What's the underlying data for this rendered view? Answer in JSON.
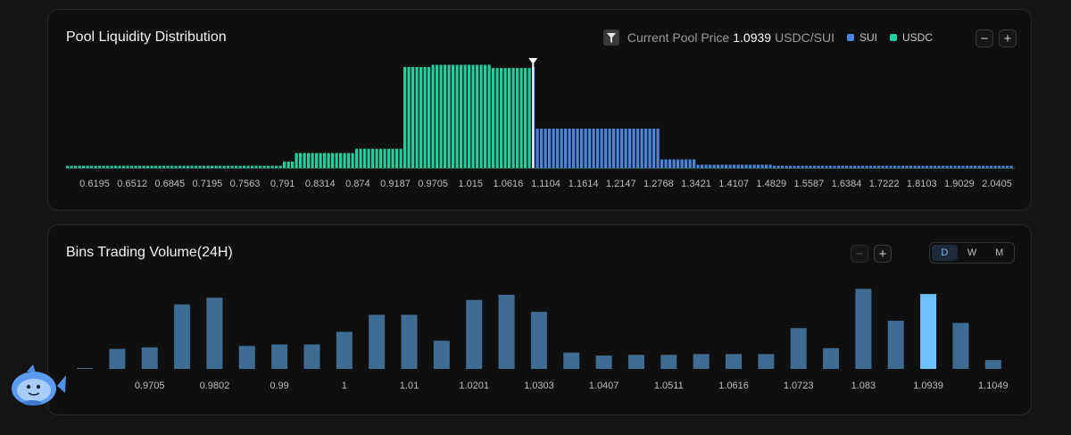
{
  "liquidity": {
    "title": "Pool Liquidity Distribution",
    "current_price_label": "Current Pool Price",
    "current_price_value": "1.0939",
    "current_price_unit": "USDC/SUI",
    "legend": [
      {
        "name": "SUI",
        "color": "#4a86df"
      },
      {
        "name": "USDC",
        "color": "#1ed1a0"
      }
    ],
    "zoom_out": "−",
    "zoom_in": "+"
  },
  "volume": {
    "title": "Bins Trading Volume(24H)",
    "zoom_out": "−",
    "zoom_in": "+",
    "periods": [
      "D",
      "W",
      "M"
    ],
    "active_period": "D"
  },
  "chart_data": [
    {
      "type": "bar",
      "title": "Pool Liquidity Distribution",
      "x_tick_labels": [
        "0.6195",
        "0.6512",
        "0.6845",
        "0.7195",
        "0.7563",
        "0.791",
        "0.8314",
        "0.874",
        "0.9187",
        "0.9705",
        "1.015",
        "1.0616",
        "1.1104",
        "1.1614",
        "1.2147",
        "1.2768",
        "1.3421",
        "1.4107",
        "1.4829",
        "1.5587",
        "1.6384",
        "1.7222",
        "1.8103",
        "1.9029",
        "2.0405"
      ],
      "x_range": [
        0.6,
        2.07
      ],
      "current_price": 1.0939,
      "y_range": [
        0,
        100
      ],
      "series": [
        {
          "name": "USDC",
          "color": "#1ed1a0",
          "segments": [
            {
              "from": 0.6,
              "to": 0.79,
              "level": 2
            },
            {
              "from": 0.79,
              "to": 0.805,
              "level": 6
            },
            {
              "from": 0.805,
              "to": 0.87,
              "level": 14
            },
            {
              "from": 0.87,
              "to": 0.93,
              "level": 18
            },
            {
              "from": 0.93,
              "to": 0.97,
              "level": 95
            },
            {
              "from": 0.97,
              "to": 1.04,
              "level": 97
            },
            {
              "from": 1.04,
              "to": 1.0939,
              "level": 94
            }
          ]
        },
        {
          "name": "SUI",
          "color": "#4a86df",
          "segments": [
            {
              "from": 1.0939,
              "to": 1.098,
              "level": 95
            },
            {
              "from": 1.098,
              "to": 1.2768,
              "level": 37
            },
            {
              "from": 1.2768,
              "to": 1.3421,
              "level": 8
            },
            {
              "from": 1.3421,
              "to": 1.4829,
              "level": 3
            },
            {
              "from": 1.4829,
              "to": 2.07,
              "level": 2
            }
          ]
        }
      ]
    },
    {
      "type": "bar",
      "title": "Bins Trading Volume(24H)",
      "categories": [
        "",
        "",
        "0.9705",
        "",
        "0.9802",
        "",
        "0.99",
        "",
        "1",
        "",
        "1.01",
        "",
        "1.0201",
        "",
        "1.0303",
        "",
        "1.0407",
        "",
        "1.0511",
        "",
        "1.0616",
        "",
        "1.0723",
        "",
        "1.083",
        "",
        "1.0939",
        "",
        "1.1049"
      ],
      "values": [
        1,
        27,
        29,
        87,
        96,
        31,
        33,
        33,
        50,
        73,
        73,
        38,
        93,
        100,
        77,
        22,
        18,
        19,
        19,
        20,
        20,
        20,
        55,
        28,
        108,
        65,
        101,
        62,
        12
      ],
      "highlight_index": 26,
      "colors": {
        "bar": "#3f6c93",
        "highlight": "#6ec3ff"
      },
      "y_range": [
        0,
        115
      ]
    }
  ]
}
